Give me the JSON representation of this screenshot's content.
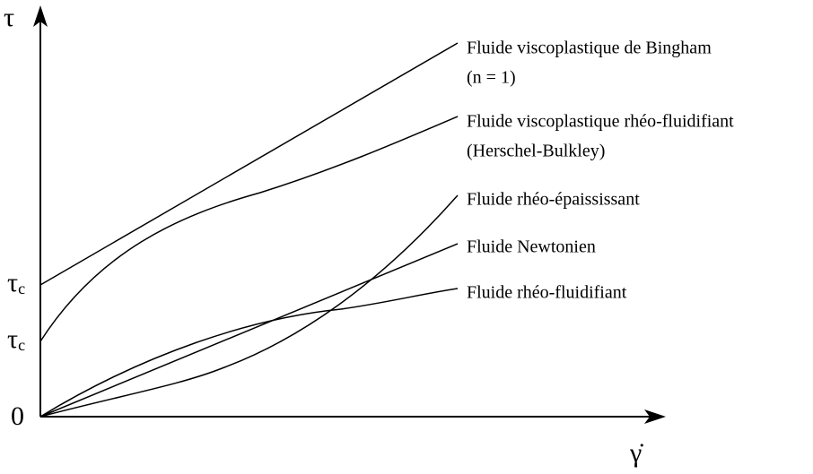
{
  "axes": {
    "y_label": "τ",
    "x_label": "γ̇",
    "origin_label": "0",
    "y_marks": [
      {
        "symbol": "τ",
        "subscript": "c"
      },
      {
        "symbol": "τ",
        "subscript": "c"
      }
    ]
  },
  "curves": [
    {
      "label": [
        "Fluide viscoplastique de Bingham",
        "(n = 1)"
      ]
    },
    {
      "label": [
        "Fluide viscoplastique rhéo-fluidifiant",
        "(Herschel-Bulkley)"
      ]
    },
    {
      "label": [
        "Fluide rhéo-épaississant"
      ]
    },
    {
      "label": [
        "Fluide Newtonien"
      ]
    },
    {
      "label": [
        "Fluide rhéo-fluidifiant"
      ]
    }
  ]
}
